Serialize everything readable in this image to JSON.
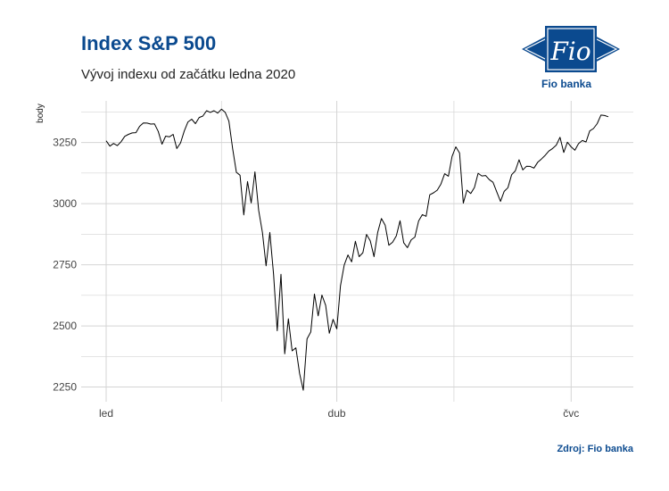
{
  "header": {
    "title": "Index S&P 500",
    "subtitle": "Vývoj indexu od začátku ledna 2020"
  },
  "logo": {
    "mark_text": "Fio",
    "name": "Fio banka"
  },
  "footer": {
    "source": "Zdroj: Fio banka"
  },
  "colors": {
    "brand": "#0b4a8f",
    "line": "#000000",
    "grid": "#d4d4d4"
  },
  "chart_data": {
    "type": "line",
    "title": "Index S&P 500",
    "subtitle": "Vývoj indexu od začátku ledna 2020",
    "xlabel": "",
    "ylabel": "body",
    "x_tick_labels": [
      "led",
      "dub",
      "čvc"
    ],
    "y_ticks": [
      2250,
      2500,
      2750,
      3000,
      3250
    ],
    "ylim": [
      2190,
      3420
    ],
    "grid": true,
    "legend": "none",
    "x_unit": "trading day index (0 = 2 Jan 2020)",
    "x_tick_positions": [
      0,
      62,
      125
    ],
    "series": [
      {
        "name": "S&P 500",
        "values": [
          3257,
          3235,
          3246,
          3237,
          3253,
          3275,
          3283,
          3289,
          3290,
          3316,
          3330,
          3329,
          3325,
          3326,
          3295,
          3243,
          3276,
          3273,
          3283,
          3225,
          3248,
          3297,
          3334,
          3345,
          3327,
          3352,
          3358,
          3380,
          3373,
          3380,
          3370,
          3386,
          3373,
          3337,
          3225,
          3128,
          3116,
          2954,
          3090,
          3003,
          3130,
          2972,
          2882,
          2746,
          2882,
          2711,
          2480,
          2711,
          2386,
          2529,
          2398,
          2410,
          2305,
          2237,
          2447,
          2475,
          2630,
          2541,
          2626,
          2584,
          2470,
          2527,
          2488,
          2664,
          2749,
          2790,
          2762,
          2846,
          2783,
          2799,
          2874,
          2848,
          2783,
          2882,
          2939,
          2912,
          2830,
          2842,
          2868,
          2930,
          2840,
          2820,
          2852,
          2863,
          2929,
          2955,
          2948,
          3036,
          3044,
          3055,
          3080,
          3122,
          3112,
          3193,
          3232,
          3207,
          3002,
          3055,
          3041,
          3066,
          3124,
          3113,
          3115,
          3098,
          3087,
          3048,
          3009,
          3050,
          3065,
          3118,
          3134,
          3179,
          3138,
          3153,
          3152,
          3145,
          3169,
          3182,
          3197,
          3215,
          3225,
          3239,
          3271,
          3209,
          3251,
          3232,
          3218,
          3245,
          3258,
          3252,
          3297,
          3307,
          3327,
          3362,
          3360,
          3355
        ]
      }
    ]
  }
}
